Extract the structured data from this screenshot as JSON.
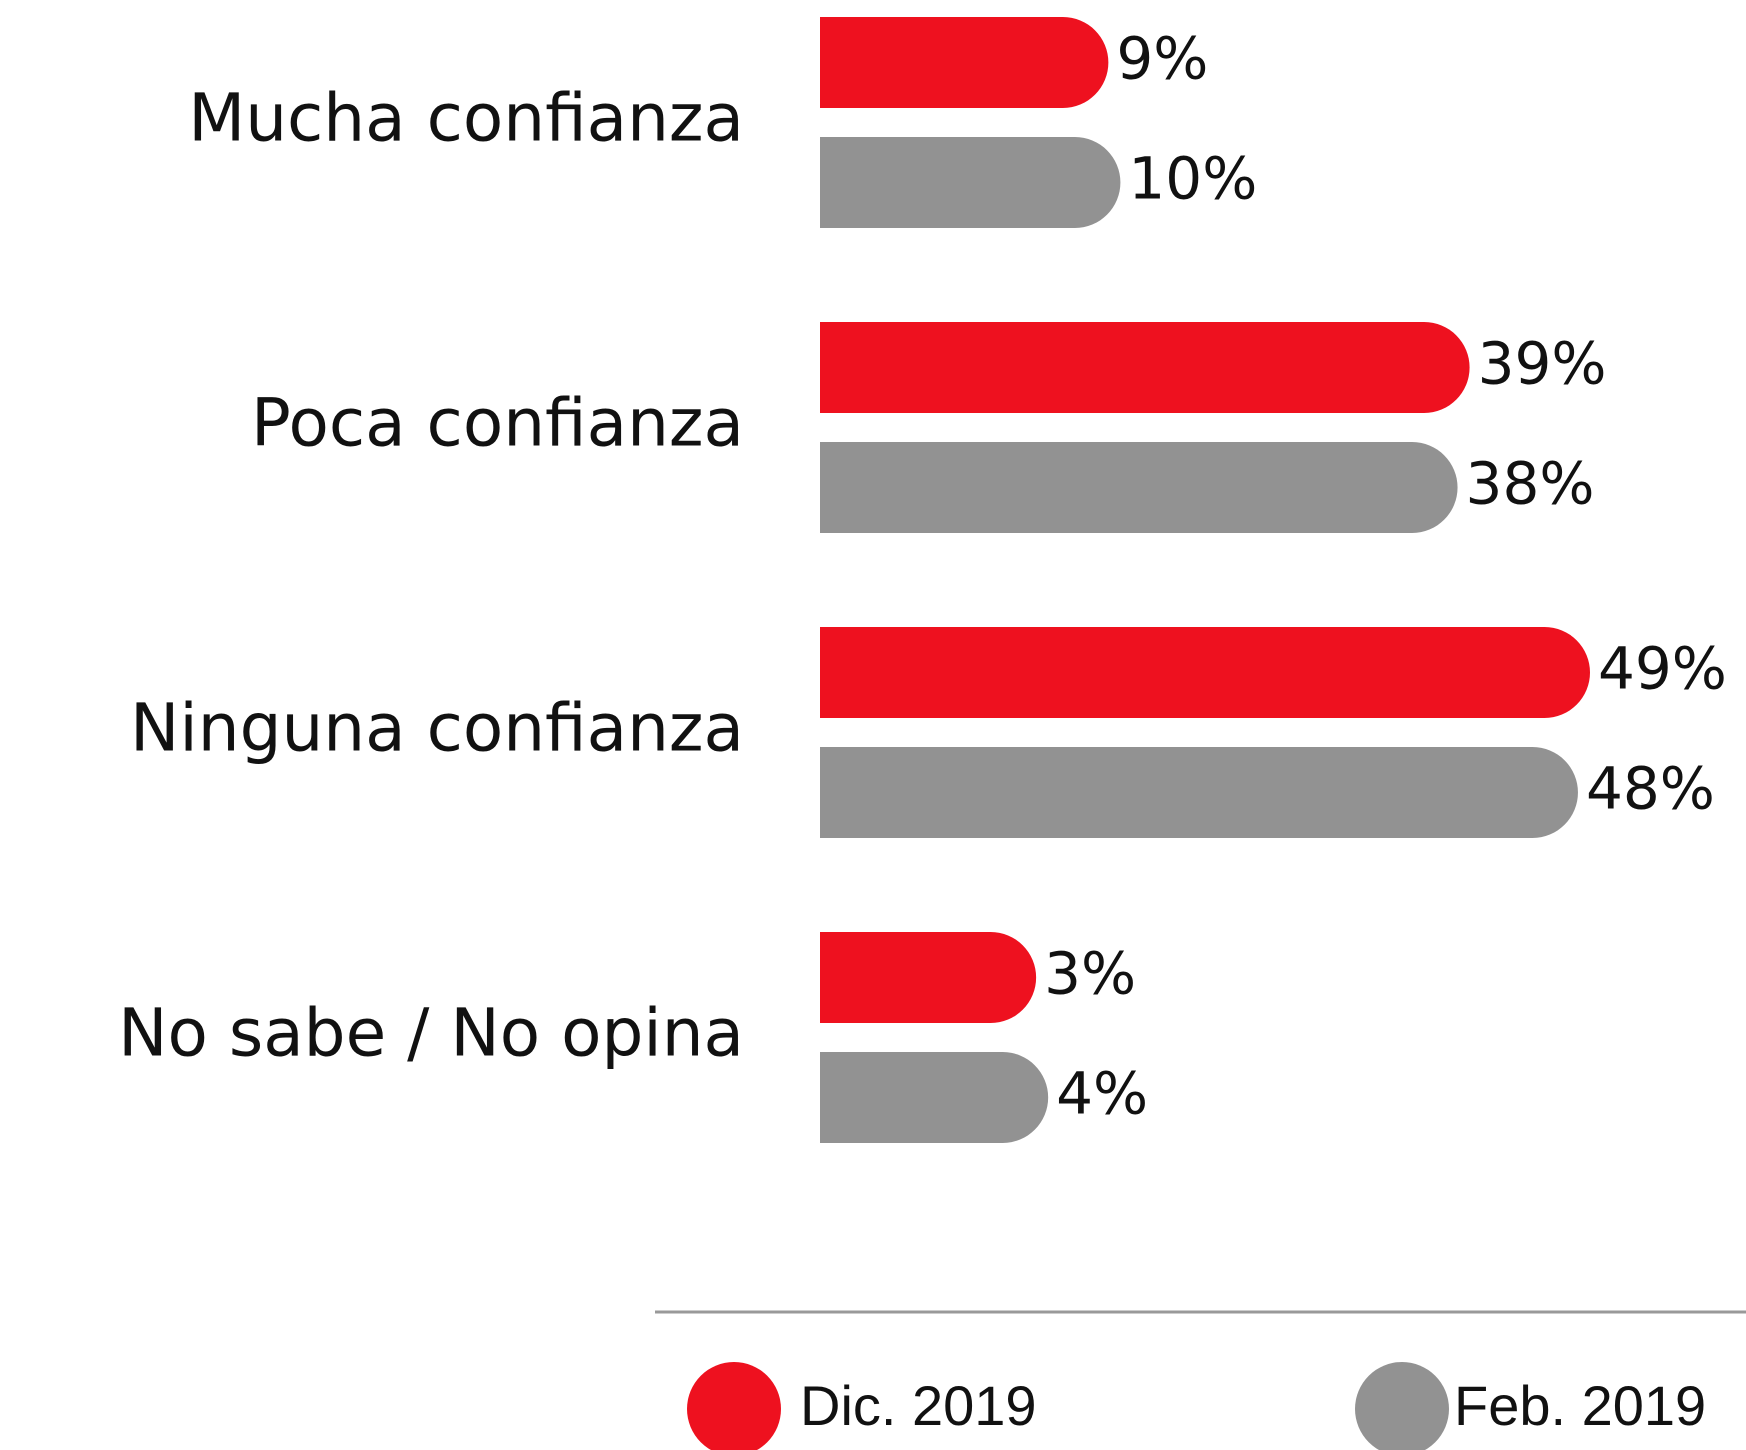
{
  "chart_data": {
    "type": "bar",
    "orientation": "horizontal",
    "categories": [
      "Mucha confianza",
      "Poca confianza",
      "Ninguna confianza",
      "No sabe / No opina"
    ],
    "series": [
      {
        "name": "Dic. 2019",
        "color": "#ee111f",
        "values": [
          9,
          39,
          49,
          3
        ],
        "value_labels": [
          "9%",
          "39%",
          "49%",
          "3%"
        ]
      },
      {
        "name": "Feb. 2019",
        "color": "#929292",
        "values": [
          10,
          38,
          48,
          4
        ],
        "value_labels": [
          "10%",
          "38%",
          "48%",
          "4%"
        ]
      }
    ],
    "legend": "bottom"
  }
}
